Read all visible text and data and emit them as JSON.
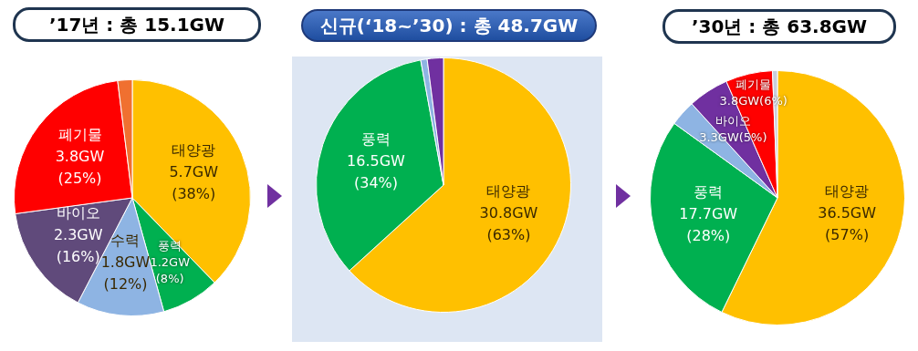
{
  "chart_data": [
    {
      "type": "pie",
      "title": "’17년 : 총 15.1GW",
      "categories": [
        "태양광",
        "풍력",
        "수력",
        "바이오",
        "폐기물",
        null
      ],
      "values": [
        5.7,
        1.2,
        1.8,
        2.3,
        3.8,
        0.3
      ],
      "colors": [
        "#ffc000",
        "#00b050",
        "#8eb4e3",
        "#604a7b",
        "#ff0000",
        "#f07030"
      ],
      "value_labels": [
        "5.7GW\n(38%)",
        "1.2GW\n(8%)",
        "1.8GW\n(12%)",
        "2.3GW\n(16%)",
        "3.8GW\n(25%)",
        null
      ]
    },
    {
      "type": "pie",
      "title": "신규(‘18~’30) : 총 48.7GW",
      "categories": [
        "태양광",
        "풍력",
        null,
        null
      ],
      "values": [
        30.8,
        16.5,
        0.4,
        1.0
      ],
      "colors": [
        "#ffc000",
        "#00b050",
        "#8eb4e3",
        "#7030a0"
      ],
      "value_labels": [
        "30.8GW\n(63%)",
        "16.5GW\n(34%)",
        null,
        null
      ]
    },
    {
      "type": "pie",
      "title": "’30년 : 총 63.8GW",
      "categories": [
        "태양광",
        "풍력",
        null,
        "바이오",
        "폐기물",
        null
      ],
      "values": [
        36.5,
        17.7,
        2.1,
        3.3,
        3.8,
        0.4
      ],
      "colors": [
        "#ffc000",
        "#00b050",
        "#8eb4e3",
        "#7030a0",
        "#ff0000",
        "#c8cedc"
      ],
      "value_labels": [
        "36.5GW\n(57%)",
        "17.7GW\n(28%)",
        null,
        "3.3GW(5%)",
        "3.8GW(6%)",
        null
      ]
    }
  ]
}
